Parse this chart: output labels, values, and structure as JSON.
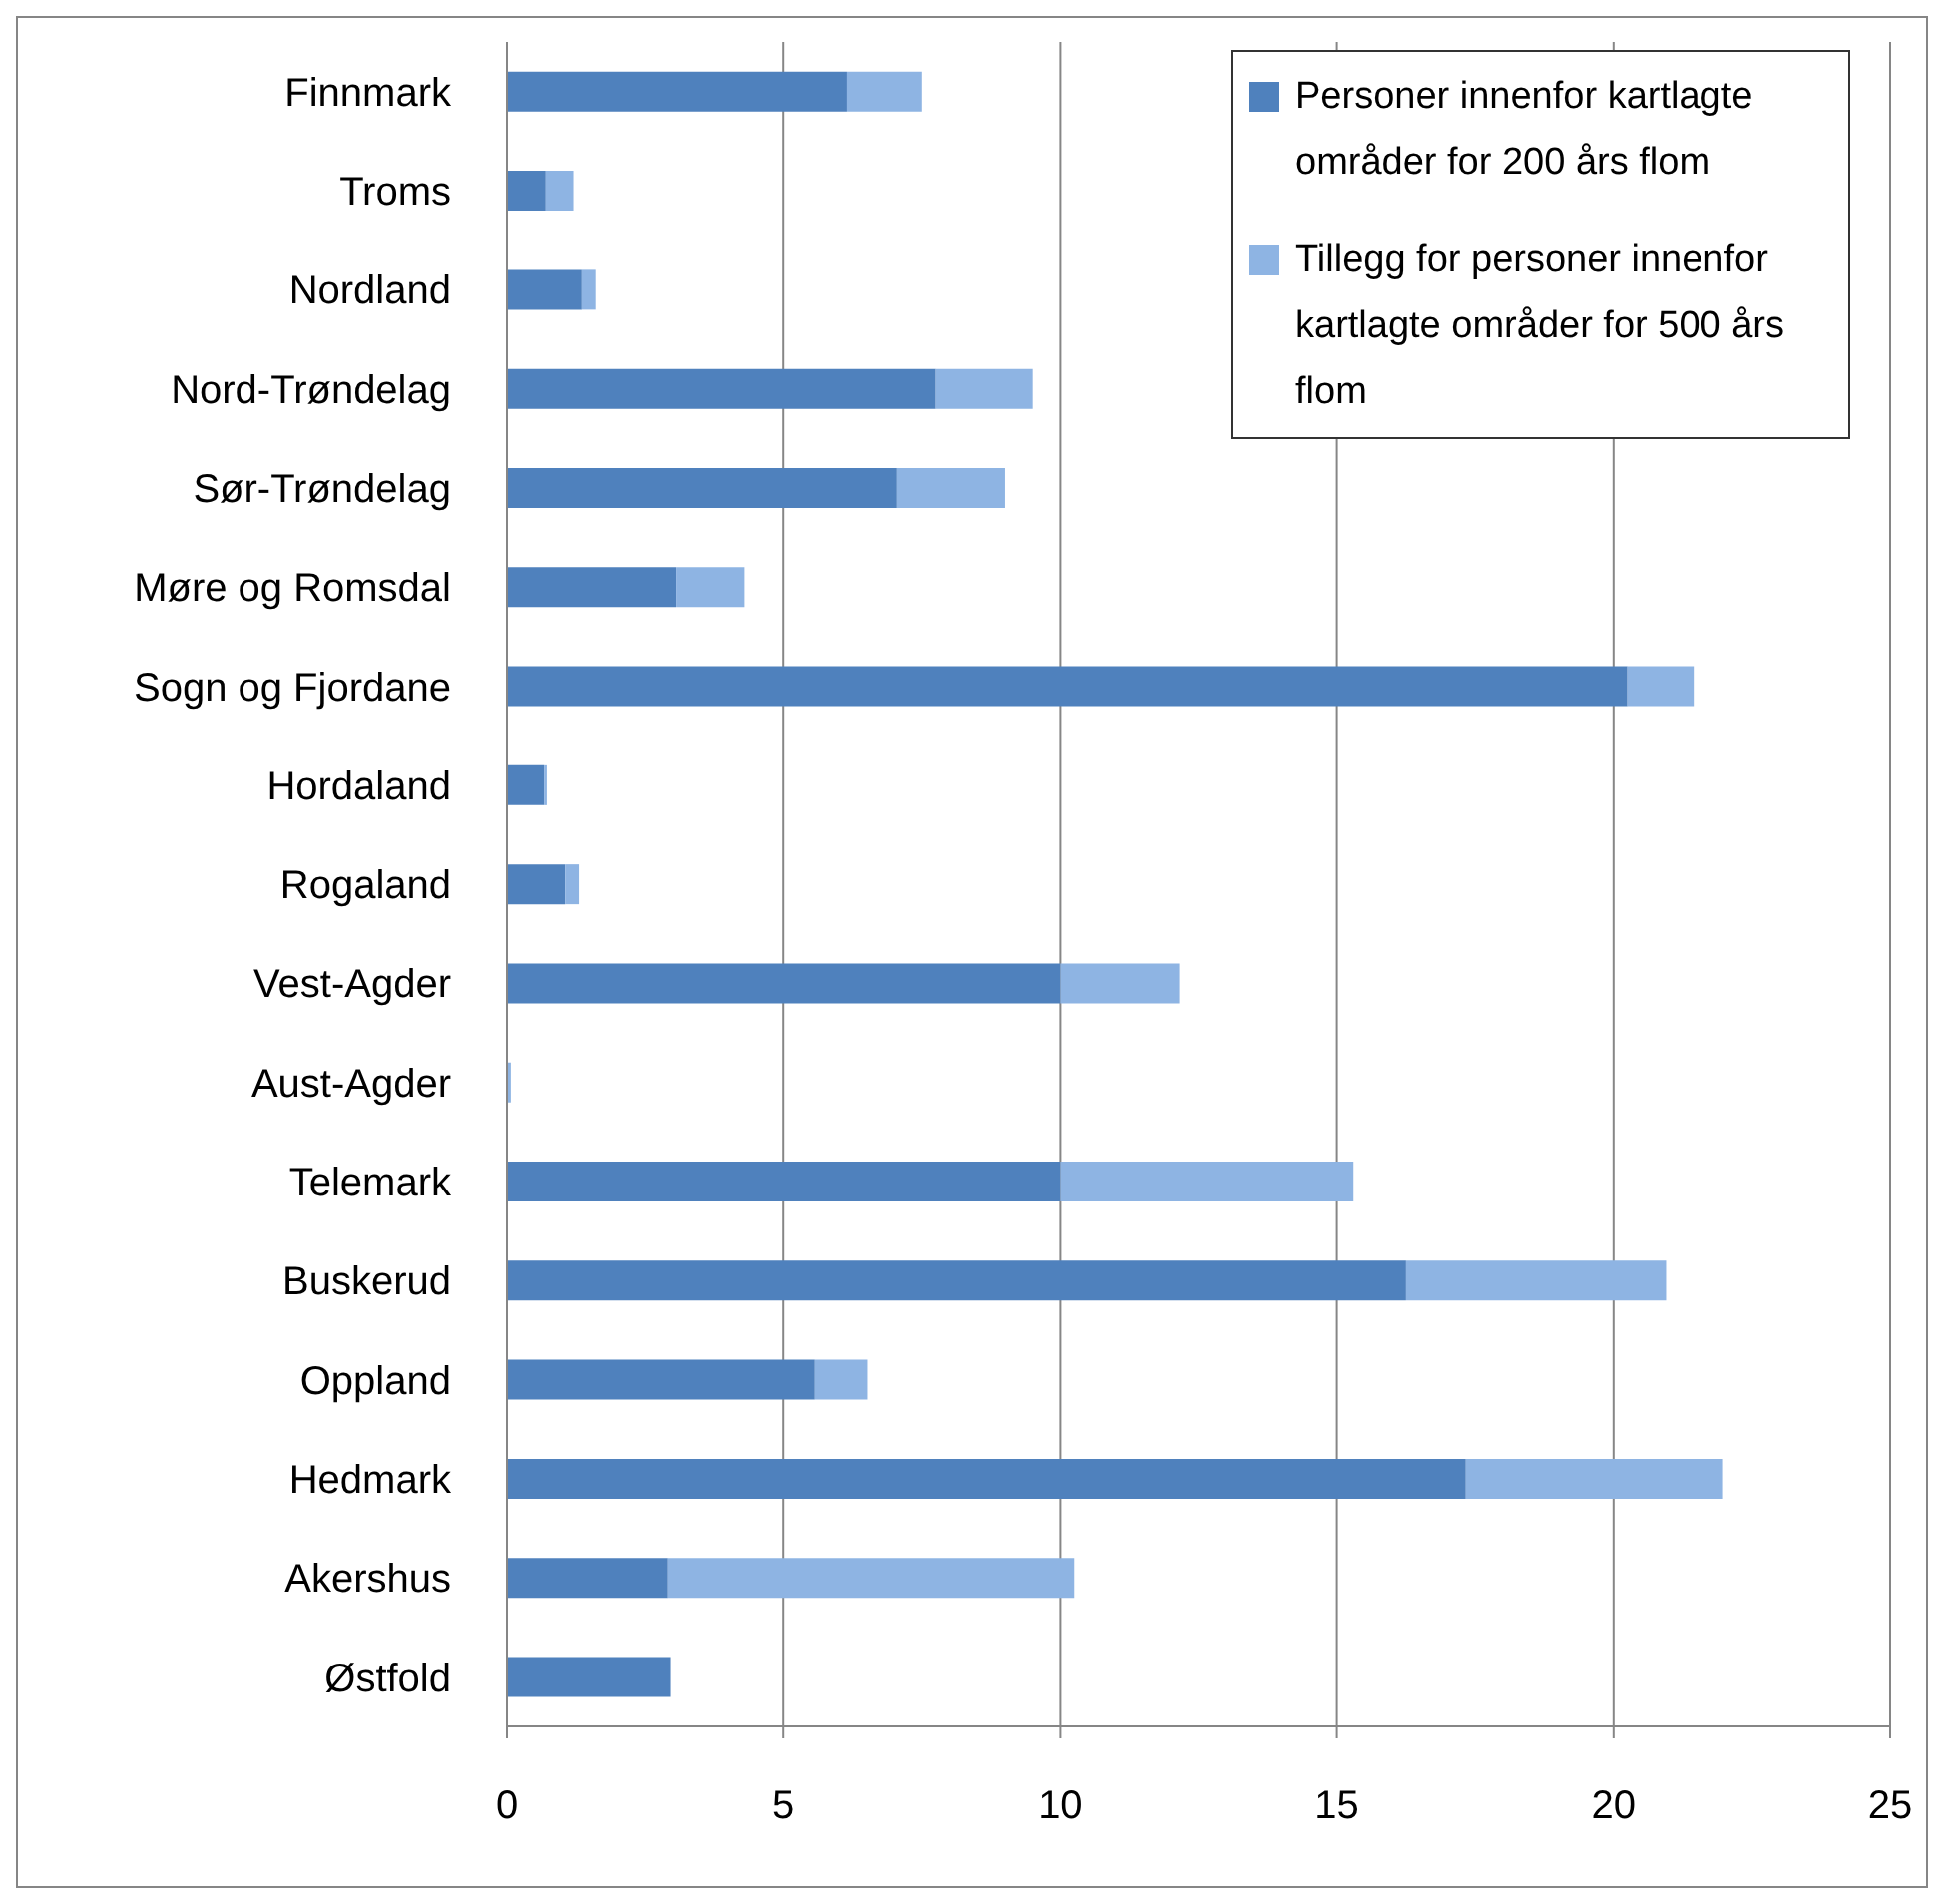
{
  "chart_data": {
    "type": "bar",
    "orientation": "horizontal",
    "stacked": true,
    "categories": [
      "Finnmark",
      "Troms",
      "Nordland",
      "Nord-Trøndelag",
      "Sør-Trøndelag",
      "Møre og Romsdal",
      "Sogn og Fjordane",
      "Hordaland",
      "Rogaland",
      "Vest-Agder",
      "Aust-Agder",
      "Telemark",
      "Buskerud",
      "Oppland",
      "Hedmark",
      "Akershus",
      "Østfold"
    ],
    "series": [
      {
        "name": "Personer innenfor kartlagte områder for 200 års flom",
        "color": "#4f81bd",
        "values": [
          6.15,
          0.7,
          1.35,
          7.75,
          7.05,
          3.05,
          20.25,
          0.67,
          1.05,
          10,
          0,
          10,
          16.25,
          5.57,
          17.33,
          2.9,
          2.95
        ]
      },
      {
        "name": "Tillegg for personer innenfor kartlagte områder for 500 års flom",
        "color": "#8eb4e3",
        "values": [
          1.35,
          0.5,
          0.25,
          1.75,
          1.95,
          1.25,
          1.2,
          0.05,
          0.25,
          2.15,
          0.07,
          5.3,
          4.7,
          0.95,
          4.65,
          7.35,
          0
        ]
      }
    ],
    "xlim": [
      0,
      25
    ],
    "xticks": [
      0,
      5,
      10,
      15,
      20,
      25
    ],
    "grid": "x",
    "legend": "top right"
  }
}
